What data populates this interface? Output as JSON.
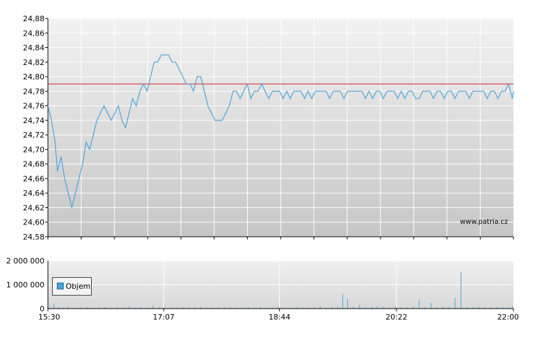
{
  "colors": {
    "line": "#4aa3d6",
    "reference_line": "#d02020",
    "volume_bar": "#4aa3d6",
    "grid": "#ffffff",
    "plot_bg_top": "#f2f2f2",
    "plot_bg_bottom": "#c6c6c6"
  },
  "watermark": "www.patria.cz",
  "legend_label": "Objem",
  "chart_data": [
    {
      "type": "line",
      "x_ticks": [
        "15:30",
        "17:07",
        "18:44",
        "20:22",
        "22:00"
      ],
      "y_ticks": [
        "24,58",
        "24,60",
        "24,62",
        "24,64",
        "24,66",
        "24,68",
        "24,70",
        "24,72",
        "24,74",
        "24,76",
        "24,78",
        "24,80",
        "24,82",
        "24,84",
        "24,86",
        "24,88"
      ],
      "ylim": [
        24.58,
        24.88
      ],
      "xlim": [
        "15:30",
        "22:00"
      ],
      "reference_value": 24.79,
      "grid": true,
      "series": [
        {
          "points": [
            [
              "15:30",
              24.76
            ],
            [
              "15:33",
              24.74
            ],
            [
              "15:36",
              24.71
            ],
            [
              "15:38",
              24.67
            ],
            [
              "15:41",
              24.69
            ],
            [
              "15:44",
              24.66
            ],
            [
              "15:47",
              24.64
            ],
            [
              "15:50",
              24.62
            ],
            [
              "15:53",
              24.64
            ],
            [
              "15:56",
              24.66
            ],
            [
              "15:59",
              24.68
            ],
            [
              "16:02",
              24.71
            ],
            [
              "16:05",
              24.7
            ],
            [
              "16:08",
              24.72
            ],
            [
              "16:11",
              24.74
            ],
            [
              "16:14",
              24.75
            ],
            [
              "16:17",
              24.76
            ],
            [
              "16:20",
              24.75
            ],
            [
              "16:23",
              24.74
            ],
            [
              "16:26",
              24.75
            ],
            [
              "16:29",
              24.76
            ],
            [
              "16:32",
              24.74
            ],
            [
              "16:35",
              24.73
            ],
            [
              "16:38",
              24.75
            ],
            [
              "16:41",
              24.77
            ],
            [
              "16:44",
              24.76
            ],
            [
              "16:47",
              24.78
            ],
            [
              "16:50",
              24.79
            ],
            [
              "16:53",
              24.78
            ],
            [
              "16:56",
              24.8
            ],
            [
              "16:59",
              24.82
            ],
            [
              "17:02",
              24.82
            ],
            [
              "17:05",
              24.83
            ],
            [
              "17:08",
              24.83
            ],
            [
              "17:11",
              24.83
            ],
            [
              "17:14",
              24.82
            ],
            [
              "17:17",
              24.82
            ],
            [
              "17:20",
              24.81
            ],
            [
              "17:23",
              24.8
            ],
            [
              "17:26",
              24.79
            ],
            [
              "17:29",
              24.79
            ],
            [
              "17:32",
              24.78
            ],
            [
              "17:35",
              24.8
            ],
            [
              "17:38",
              24.8
            ],
            [
              "17:41",
              24.78
            ],
            [
              "17:44",
              24.76
            ],
            [
              "17:47",
              24.75
            ],
            [
              "17:50",
              24.74
            ],
            [
              "17:53",
              24.74
            ],
            [
              "17:56",
              24.74
            ],
            [
              "17:59",
              24.75
            ],
            [
              "18:02",
              24.76
            ],
            [
              "18:05",
              24.78
            ],
            [
              "18:08",
              24.78
            ],
            [
              "18:11",
              24.77
            ],
            [
              "18:14",
              24.78
            ],
            [
              "18:17",
              24.79
            ],
            [
              "18:20",
              24.77
            ],
            [
              "18:23",
              24.78
            ],
            [
              "18:26",
              24.78
            ],
            [
              "18:29",
              24.79
            ],
            [
              "18:32",
              24.78
            ],
            [
              "18:35",
              24.77
            ],
            [
              "18:38",
              24.78
            ],
            [
              "18:41",
              24.78
            ],
            [
              "18:44",
              24.78
            ],
            [
              "18:47",
              24.77
            ],
            [
              "18:50",
              24.78
            ],
            [
              "18:53",
              24.77
            ],
            [
              "18:56",
              24.78
            ],
            [
              "18:59",
              24.78
            ],
            [
              "19:02",
              24.78
            ],
            [
              "19:05",
              24.77
            ],
            [
              "19:08",
              24.78
            ],
            [
              "19:11",
              24.77
            ],
            [
              "19:14",
              24.78
            ],
            [
              "19:17",
              24.78
            ],
            [
              "19:20",
              24.78
            ],
            [
              "19:23",
              24.78
            ],
            [
              "19:26",
              24.77
            ],
            [
              "19:29",
              24.78
            ],
            [
              "19:32",
              24.78
            ],
            [
              "19:35",
              24.78
            ],
            [
              "19:38",
              24.77
            ],
            [
              "19:41",
              24.78
            ],
            [
              "19:44",
              24.78
            ],
            [
              "19:47",
              24.78
            ],
            [
              "19:50",
              24.78
            ],
            [
              "19:53",
              24.78
            ],
            [
              "19:56",
              24.77
            ],
            [
              "19:59",
              24.78
            ],
            [
              "20:02",
              24.77
            ],
            [
              "20:05",
              24.78
            ],
            [
              "20:08",
              24.78
            ],
            [
              "20:11",
              24.77
            ],
            [
              "20:14",
              24.78
            ],
            [
              "20:17",
              24.78
            ],
            [
              "20:20",
              24.78
            ],
            [
              "20:23",
              24.77
            ],
            [
              "20:26",
              24.78
            ],
            [
              "20:29",
              24.77
            ],
            [
              "20:32",
              24.78
            ],
            [
              "20:35",
              24.78
            ],
            [
              "20:38",
              24.77
            ],
            [
              "20:41",
              24.77
            ],
            [
              "20:44",
              24.78
            ],
            [
              "20:47",
              24.78
            ],
            [
              "20:50",
              24.78
            ],
            [
              "20:53",
              24.77
            ],
            [
              "20:56",
              24.78
            ],
            [
              "20:59",
              24.78
            ],
            [
              "21:02",
              24.77
            ],
            [
              "21:05",
              24.78
            ],
            [
              "21:08",
              24.78
            ],
            [
              "21:11",
              24.77
            ],
            [
              "21:14",
              24.78
            ],
            [
              "21:17",
              24.78
            ],
            [
              "21:20",
              24.78
            ],
            [
              "21:23",
              24.77
            ],
            [
              "21:26",
              24.78
            ],
            [
              "21:29",
              24.78
            ],
            [
              "21:32",
              24.78
            ],
            [
              "21:35",
              24.78
            ],
            [
              "21:38",
              24.77
            ],
            [
              "21:41",
              24.78
            ],
            [
              "21:44",
              24.78
            ],
            [
              "21:47",
              24.77
            ],
            [
              "21:50",
              24.78
            ],
            [
              "21:53",
              24.78
            ],
            [
              "21:56",
              24.79
            ],
            [
              "21:59",
              24.77
            ],
            [
              "22:00",
              24.78
            ]
          ]
        }
      ]
    },
    {
      "type": "bar",
      "x_ticks": [
        "15:30",
        "17:07",
        "18:44",
        "20:22",
        "22:00"
      ],
      "y_ticks": [
        "0",
        "1 000 000",
        "2 000 000"
      ],
      "ylim": [
        0,
        2000000
      ],
      "xlim": [
        "15:30",
        "22:00"
      ],
      "legend": "Objem",
      "grid": true,
      "series": [
        {
          "name": "Objem",
          "points": [
            [
              "15:32",
              60000
            ],
            [
              "15:35",
              200000
            ],
            [
              "15:39",
              50000
            ],
            [
              "15:43",
              40000
            ],
            [
              "15:47",
              80000
            ],
            [
              "15:52",
              30000
            ],
            [
              "15:58",
              40000
            ],
            [
              "16:03",
              60000
            ],
            [
              "16:08",
              30000
            ],
            [
              "16:13",
              40000
            ],
            [
              "16:18",
              70000
            ],
            [
              "16:23",
              30000
            ],
            [
              "16:28",
              50000
            ],
            [
              "16:33",
              40000
            ],
            [
              "16:38",
              90000
            ],
            [
              "16:43",
              40000
            ],
            [
              "16:48",
              60000
            ],
            [
              "16:53",
              30000
            ],
            [
              "16:58",
              130000
            ],
            [
              "17:03",
              50000
            ],
            [
              "17:08",
              60000
            ],
            [
              "17:13",
              40000
            ],
            [
              "17:18",
              30000
            ],
            [
              "17:23",
              60000
            ],
            [
              "17:28",
              40000
            ],
            [
              "17:33",
              50000
            ],
            [
              "17:38",
              70000
            ],
            [
              "17:43",
              40000
            ],
            [
              "17:48",
              30000
            ],
            [
              "17:53",
              60000
            ],
            [
              "17:58",
              40000
            ],
            [
              "18:03",
              50000
            ],
            [
              "18:08",
              30000
            ],
            [
              "18:13",
              40000
            ],
            [
              "18:18",
              60000
            ],
            [
              "18:23",
              30000
            ],
            [
              "18:28",
              50000
            ],
            [
              "18:33",
              40000
            ],
            [
              "18:38",
              30000
            ],
            [
              "18:43",
              70000
            ],
            [
              "18:48",
              40000
            ],
            [
              "18:53",
              30000
            ],
            [
              "18:58",
              60000
            ],
            [
              "19:03",
              40000
            ],
            [
              "19:08",
              30000
            ],
            [
              "19:13",
              50000
            ],
            [
              "19:18",
              120000
            ],
            [
              "19:23",
              40000
            ],
            [
              "19:28",
              60000
            ],
            [
              "19:33",
              90000
            ],
            [
              "19:37",
              620000
            ],
            [
              "19:41",
              400000
            ],
            [
              "19:46",
              80000
            ],
            [
              "19:51",
              150000
            ],
            [
              "19:56",
              60000
            ],
            [
              "20:01",
              70000
            ],
            [
              "20:06",
              100000
            ],
            [
              "20:11",
              80000
            ],
            [
              "20:16",
              60000
            ],
            [
              "20:21",
              90000
            ],
            [
              "20:26",
              60000
            ],
            [
              "20:31",
              70000
            ],
            [
              "20:36",
              80000
            ],
            [
              "20:41",
              360000
            ],
            [
              "20:46",
              60000
            ],
            [
              "20:51",
              230000
            ],
            [
              "20:56",
              70000
            ],
            [
              "21:01",
              90000
            ],
            [
              "21:06",
              60000
            ],
            [
              "21:11",
              450000
            ],
            [
              "21:16",
              1520000
            ],
            [
              "21:21",
              60000
            ],
            [
              "21:26",
              50000
            ],
            [
              "21:31",
              80000
            ],
            [
              "21:36",
              60000
            ],
            [
              "21:41",
              50000
            ],
            [
              "21:46",
              70000
            ],
            [
              "21:51",
              60000
            ],
            [
              "21:56",
              50000
            ],
            [
              "21:59",
              100000
            ]
          ]
        }
      ]
    }
  ]
}
